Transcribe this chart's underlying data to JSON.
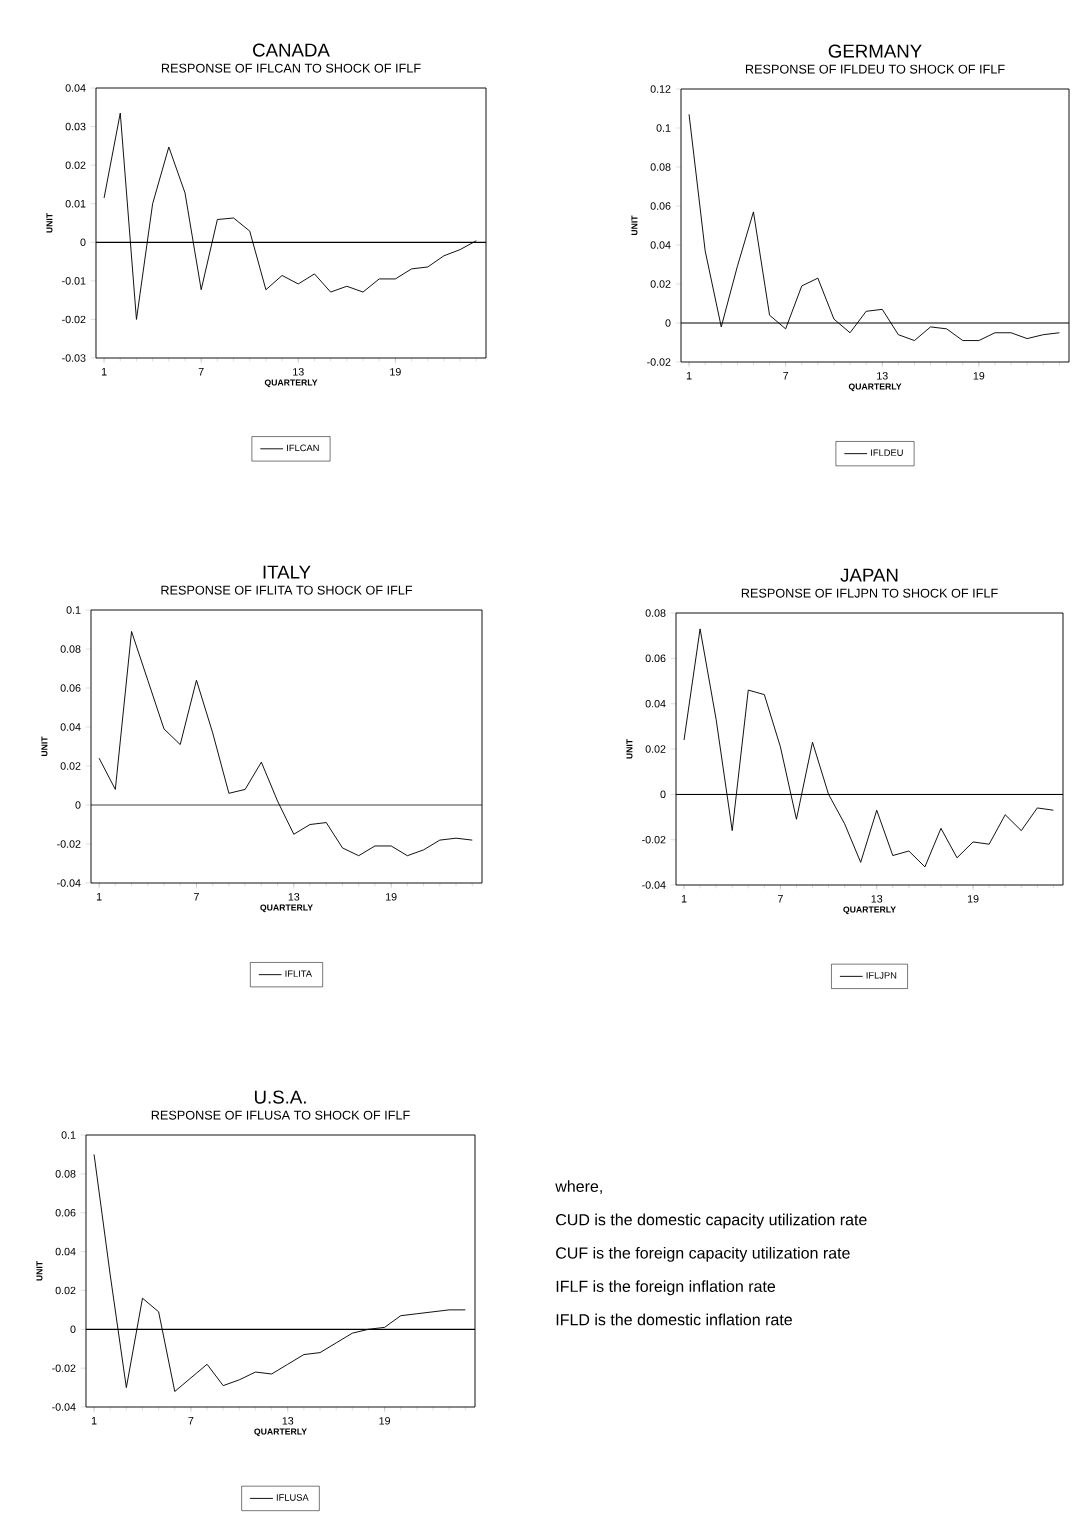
{
  "chart_data": [
    {
      "type": "line",
      "title": "CANADA",
      "subtitle": "RESPONSE OF IFLCAN TO SHOCK OF IFLF",
      "xlabel": "QUARTERLY",
      "ylabel": "UNIT",
      "x": [
        1,
        2,
        3,
        4,
        5,
        6,
        7,
        8,
        9,
        10,
        11,
        12,
        13,
        14,
        15,
        16,
        17,
        18,
        19,
        20,
        21,
        22,
        23,
        24
      ],
      "series": [
        {
          "name": "IFLCAN",
          "color": "#000000",
          "values": [
            0.0115,
            0.0335,
            -0.02,
            0.01,
            0.0247,
            0.0128,
            -0.0123,
            0.0059,
            0.0063,
            0.0029,
            -0.0123,
            -0.0086,
            -0.0108,
            -0.0082,
            -0.0129,
            -0.0114,
            -0.0129,
            -0.0095,
            -0.0095,
            -0.0069,
            -0.0064,
            -0.0035,
            -0.0019,
            0.0004
          ]
        }
      ],
      "xlim": [
        0.5,
        24.6
      ],
      "ylim": [
        -0.03,
        0.04
      ],
      "xticks": [
        1,
        7,
        13,
        19
      ],
      "yticks": [
        -0.03,
        -0.02,
        -0.01,
        0,
        0.01,
        0.02,
        0.03,
        0.04
      ],
      "ref_lines": [
        {
          "axis": "y",
          "value": 0,
          "color": "#000000"
        }
      ],
      "legend": "bottom",
      "marker": "none",
      "line_style": "solid"
    },
    {
      "type": "line",
      "title": "GERMANY",
      "subtitle": "RESPONSE OF IFLDEU TO SHOCK OF IFLF",
      "xlabel": "QUARTERLY",
      "ylabel": "UNIT",
      "x": [
        1,
        2,
        3,
        4,
        5,
        6,
        7,
        8,
        9,
        10,
        11,
        12,
        13,
        14,
        15,
        16,
        17,
        18,
        19,
        20,
        21,
        22,
        23,
        24
      ],
      "series": [
        {
          "name": "IFLDEU",
          "color": "#000000",
          "values": [
            0.107,
            0.037,
            -0.002,
            0.029,
            0.057,
            0.004,
            -0.003,
            0.019,
            0.023,
            0.002,
            -0.005,
            0.006,
            0.007,
            -0.006,
            -0.009,
            -0.002,
            -0.003,
            -0.009,
            -0.009,
            -0.005,
            -0.005,
            -0.008,
            -0.006,
            -0.005
          ]
        }
      ],
      "xlim": [
        0.5,
        24.6
      ],
      "ylim": [
        -0.02,
        0.12
      ],
      "xticks": [
        1,
        7,
        13,
        19
      ],
      "yticks": [
        -0.02,
        0,
        0.02,
        0.04,
        0.06,
        0.08,
        0.1,
        0.12
      ],
      "ref_lines": [
        {
          "axis": "y",
          "value": 0,
          "color": "#000000"
        }
      ],
      "legend": "bottom",
      "marker": "none",
      "line_style": "solid"
    },
    {
      "type": "line",
      "title": "ITALY",
      "subtitle": "RESPONSE OF IFLITA TO SHOCK OF IFLF",
      "xlabel": "QUARTERLY",
      "ylabel": "UNIT",
      "x": [
        1,
        2,
        3,
        4,
        5,
        6,
        7,
        8,
        9,
        10,
        11,
        12,
        13,
        14,
        15,
        16,
        17,
        18,
        19,
        20,
        21,
        22,
        23,
        24
      ],
      "series": [
        {
          "name": "IFLITA",
          "color": "#000000",
          "values": [
            0.024,
            0.008,
            0.089,
            0.064,
            0.039,
            0.031,
            0.064,
            0.037,
            0.006,
            0.008,
            0.022,
            0.002,
            -0.015,
            -0.01,
            -0.009,
            -0.022,
            -0.026,
            -0.021,
            -0.021,
            -0.026,
            -0.023,
            -0.018,
            -0.017,
            -0.018
          ]
        }
      ],
      "xlim": [
        0.5,
        24.6
      ],
      "ylim": [
        -0.04,
        0.1
      ],
      "xticks": [
        1,
        7,
        13,
        19
      ],
      "yticks": [
        -0.04,
        -0.02,
        0,
        0.02,
        0.04,
        0.06,
        0.08,
        0.1
      ],
      "ref_lines": [
        {
          "axis": "y",
          "value": 0,
          "color": "#000000"
        }
      ],
      "legend": "bottom",
      "marker": "none",
      "line_style": "solid"
    },
    {
      "type": "line",
      "title": "JAPAN",
      "subtitle": "RESPONSE OF IFLJPN TO SHOCK OF IFLF",
      "xlabel": "QUARTERLY",
      "ylabel": "UNIT",
      "x": [
        1,
        2,
        3,
        4,
        5,
        6,
        7,
        8,
        9,
        10,
        11,
        12,
        13,
        14,
        15,
        16,
        17,
        18,
        19,
        20,
        21,
        22,
        23,
        24
      ],
      "series": [
        {
          "name": "IFLJPN",
          "color": "#000000",
          "values": [
            0.024,
            0.073,
            0.033,
            -0.016,
            0.046,
            0.044,
            0.021,
            -0.011,
            0.023,
            0.0,
            -0.013,
            -0.03,
            -0.007,
            -0.027,
            -0.025,
            -0.032,
            -0.015,
            -0.028,
            -0.021,
            -0.022,
            -0.009,
            -0.016,
            -0.006,
            -0.007
          ]
        }
      ],
      "xlim": [
        0.5,
        24.6
      ],
      "ylim": [
        -0.04,
        0.08
      ],
      "xticks": [
        1,
        7,
        13,
        19
      ],
      "yticks": [
        -0.04,
        -0.02,
        0,
        0.02,
        0.04,
        0.06,
        0.08
      ],
      "ref_lines": [
        {
          "axis": "y",
          "value": 0,
          "color": "#000000"
        }
      ],
      "legend": "bottom",
      "marker": "none",
      "line_style": "solid"
    },
    {
      "type": "line",
      "title": "U.S.A.",
      "subtitle": "RESPONSE OF IFLUSA TO SHOCK OF IFLF",
      "xlabel": "QUARTERLY",
      "ylabel": "UNIT",
      "x": [
        1,
        2,
        3,
        4,
        5,
        6,
        7,
        8,
        9,
        10,
        11,
        12,
        13,
        14,
        15,
        16,
        17,
        18,
        19,
        20,
        21,
        22,
        23,
        24
      ],
      "series": [
        {
          "name": "IFLUSA",
          "color": "#000000",
          "values": [
            0.09,
            0.028,
            -0.03,
            0.016,
            0.009,
            -0.032,
            -0.025,
            -0.018,
            -0.029,
            -0.026,
            -0.022,
            -0.023,
            -0.018,
            -0.013,
            -0.012,
            -0.007,
            -0.002,
            0.0,
            0.001,
            0.007,
            0.008,
            0.009,
            0.01,
            0.01
          ]
        }
      ],
      "xlim": [
        0.5,
        24.6
      ],
      "ylim": [
        -0.04,
        0.1
      ],
      "xticks": [
        1,
        7,
        13,
        19
      ],
      "yticks": [
        -0.04,
        -0.02,
        0,
        0.02,
        0.04,
        0.06,
        0.08,
        0.1
      ],
      "ref_lines": [
        {
          "axis": "y",
          "value": 0,
          "color": "#000000"
        }
      ],
      "legend": "bottom",
      "marker": "none",
      "line_style": "solid"
    },
    {
      "type": "other",
      "annotations": [
        "where,",
        "CUD is the domestic capacity utilization rate",
        "CUF is the foreign capacity utilization rate",
        "IFLF is the foreign inflation rate",
        "IFLD is the domestic inflation rate"
      ]
    }
  ]
}
